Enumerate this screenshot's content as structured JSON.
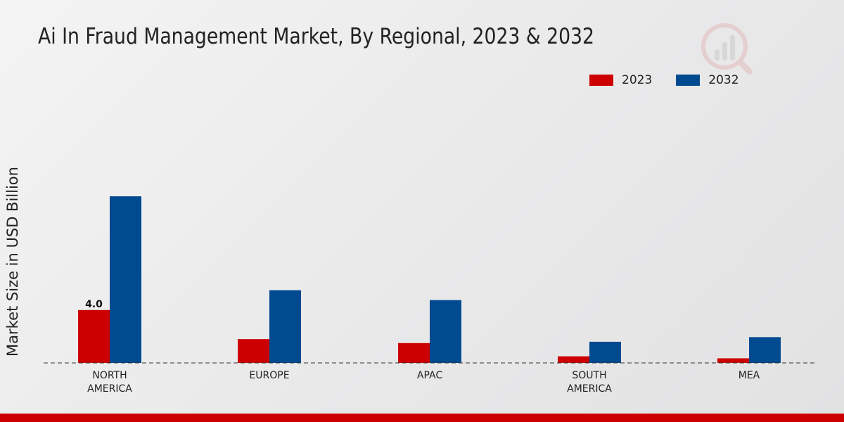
{
  "chart_data": {
    "type": "bar",
    "title": "Ai In Fraud Management Market, By Regional, 2023 & 2032",
    "ylabel": "Market Size in USD Billion",
    "xlabel": "",
    "categories": [
      [
        "NORTH",
        "AMERICA"
      ],
      [
        "EUROPE"
      ],
      [
        "APAC"
      ],
      [
        "SOUTH",
        "AMERICA"
      ],
      [
        "MEA"
      ]
    ],
    "series": [
      {
        "name": "2023",
        "color": "#cc0000",
        "values": [
          4.0,
          1.8,
          1.5,
          0.5,
          0.35
        ]
      },
      {
        "name": "2032",
        "color": "#004a8f",
        "values": [
          12.6,
          5.5,
          4.75,
          1.6,
          1.95
        ]
      }
    ],
    "data_labels": [
      {
        "series": 0,
        "category": 0,
        "text": "4.0"
      }
    ],
    "ylim": [
      0,
      20
    ],
    "grid": false,
    "legend_position": "top-right"
  }
}
